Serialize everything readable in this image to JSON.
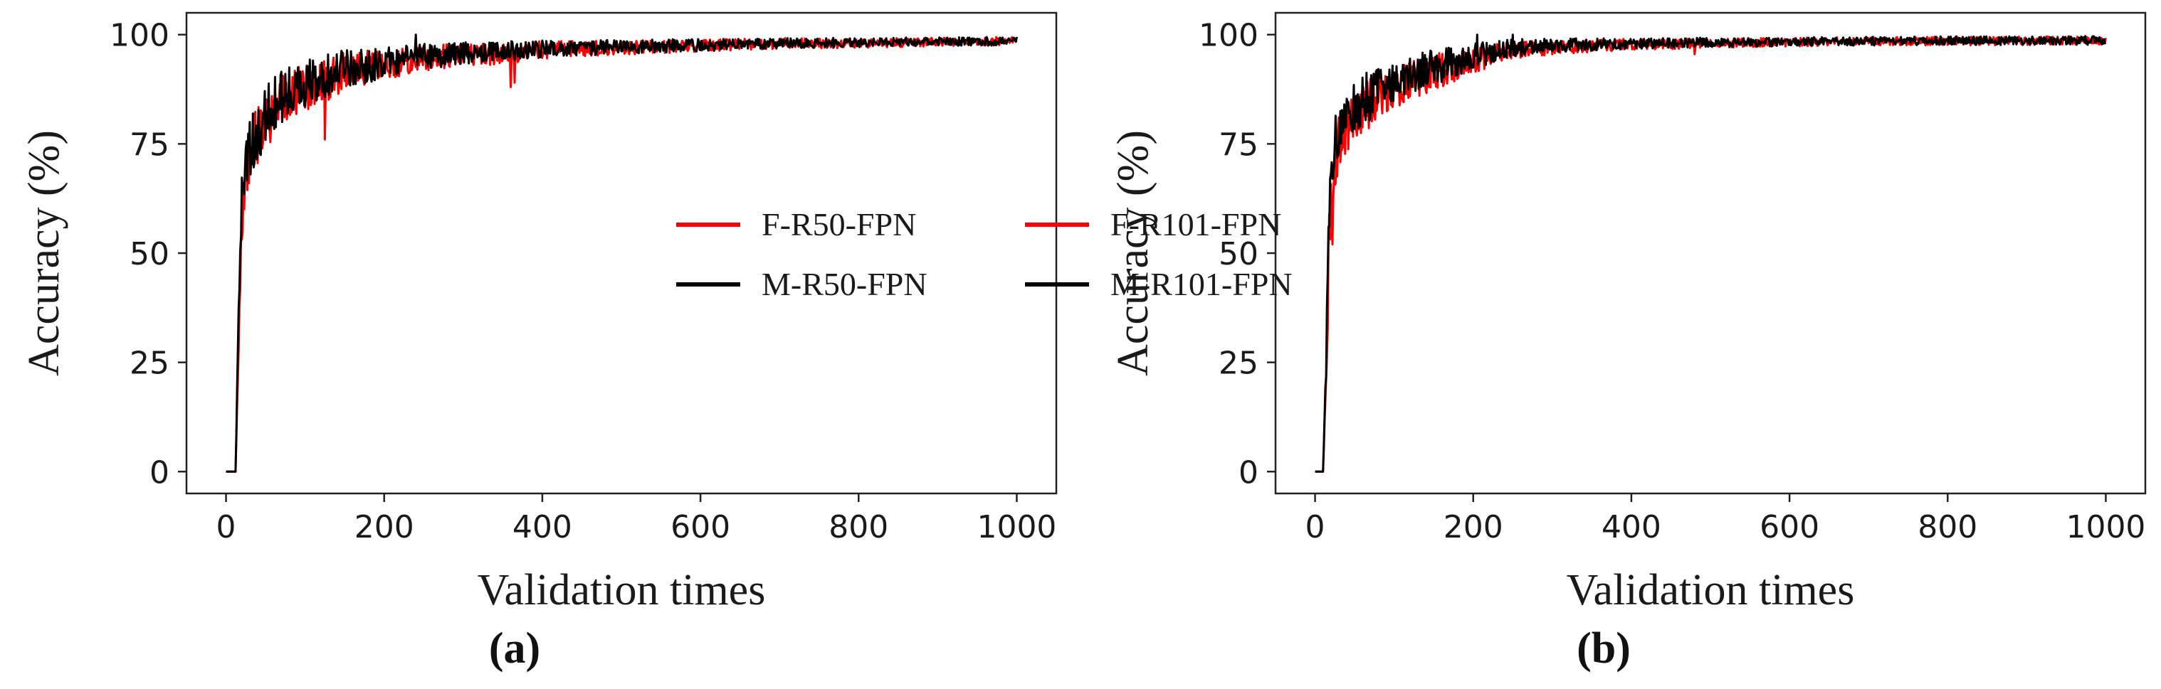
{
  "chart_data": [
    {
      "type": "line",
      "panel_label": "(a)",
      "xlabel": "Validation times",
      "ylabel": "Accuracy (%)",
      "xlim": [
        -50,
        1050
      ],
      "ylim": [
        -5,
        105
      ],
      "xticks": [
        0,
        200,
        400,
        600,
        800,
        1000
      ],
      "yticks": [
        0,
        25,
        50,
        75,
        100
      ],
      "legend_position": "center-right",
      "series": [
        {
          "name": "F-R50-FPN",
          "color": "#ff0000",
          "x": [
            0,
            12,
            16,
            20,
            25,
            30,
            40,
            50,
            60,
            80,
            100,
            130,
            160,
            200,
            250,
            300,
            350,
            400,
            500,
            600,
            700,
            800,
            900,
            1000
          ],
          "y": [
            0,
            0,
            30,
            58,
            68,
            72,
            77,
            80,
            83,
            86,
            88,
            90,
            92,
            93,
            94.5,
            95.5,
            95.5,
            96.5,
            97,
            97.5,
            98,
            98,
            98.3,
            98.5
          ],
          "noise": [
            0,
            0,
            3,
            6,
            6,
            7,
            7,
            7,
            6.5,
            6,
            5.5,
            5,
            4.5,
            3.5,
            3,
            2.5,
            2.5,
            2,
            1.6,
            1.4,
            1.2,
            1.1,
            1,
            1
          ],
          "dips": [
            {
              "x": 125,
              "y": 76
            },
            {
              "x": 360,
              "y": 88
            },
            {
              "x": 365,
              "y": 89
            }
          ]
        },
        {
          "name": "M-R50-FPN",
          "color": "#000000",
          "x": [
            0,
            12,
            16,
            20,
            25,
            30,
            40,
            50,
            60,
            80,
            100,
            130,
            160,
            200,
            250,
            300,
            350,
            400,
            500,
            600,
            700,
            800,
            900,
            1000
          ],
          "y": [
            0,
            0,
            35,
            62,
            70,
            74,
            78,
            81,
            84,
            87,
            89,
            91,
            92.5,
            93.5,
            95,
            95.8,
            96.2,
            96.8,
            97.2,
            97.6,
            98,
            98.2,
            98.4,
            98.5
          ],
          "noise": [
            0,
            0,
            3,
            6,
            6,
            7,
            7,
            7,
            6.5,
            6,
            5.5,
            5,
            4.5,
            3.5,
            3,
            2.5,
            2.2,
            2,
            1.6,
            1.4,
            1.2,
            1.1,
            1,
            1
          ],
          "dips": [
            {
              "x": 240,
              "y": 100
            },
            {
              "x": 30,
              "y": 80
            }
          ]
        }
      ]
    },
    {
      "type": "line",
      "panel_label": "(b)",
      "xlabel": "Validation times",
      "ylabel": "Accuracy (%)",
      "xlim": [
        -50,
        1050
      ],
      "ylim": [
        -5,
        105
      ],
      "xticks": [
        0,
        200,
        400,
        600,
        800,
        1000
      ],
      "yticks": [
        0,
        25,
        50,
        75,
        100
      ],
      "legend_position": "center-right",
      "series": [
        {
          "name": "F-R101-FPN",
          "color": "#ff0000",
          "x": [
            0,
            10,
            14,
            18,
            22,
            28,
            35,
            45,
            60,
            80,
            100,
            130,
            160,
            200,
            250,
            300,
            400,
            500,
            600,
            700,
            800,
            900,
            1000
          ],
          "y": [
            0,
            0,
            20,
            55,
            68,
            74,
            78,
            80,
            83,
            86,
            88,
            90,
            92,
            94,
            96.5,
            97,
            97.8,
            98,
            98.3,
            98.5,
            98.5,
            98.6,
            98.7
          ],
          "noise": [
            0,
            0,
            4,
            7,
            7,
            6.5,
            6,
            6,
            6,
            5.5,
            5,
            4.5,
            4,
            3,
            2,
            1.6,
            1.3,
            1.1,
            1,
            1,
            1,
            1,
            1
          ],
          "dips": [
            {
              "x": 22,
              "y": 52
            },
            {
              "x": 480,
              "y": 95.5
            }
          ]
        },
        {
          "name": "M-R101-FPN",
          "color": "#000000",
          "x": [
            0,
            10,
            14,
            18,
            22,
            28,
            35,
            45,
            60,
            80,
            100,
            130,
            160,
            200,
            250,
            300,
            400,
            500,
            600,
            700,
            800,
            900,
            1000
          ],
          "y": [
            0,
            0,
            25,
            60,
            72,
            77,
            80,
            82,
            85,
            87.5,
            89.5,
            91.5,
            93,
            95,
            97,
            97.5,
            98,
            98.2,
            98.4,
            98.5,
            98.6,
            98.6,
            98.7
          ],
          "noise": [
            0,
            0,
            4,
            7,
            7,
            6.5,
            6,
            6,
            6,
            5.5,
            5,
            4.5,
            4,
            3,
            2,
            1.6,
            1.3,
            1.1,
            1,
            1,
            1,
            1,
            1
          ],
          "dips": [
            {
              "x": 205,
              "y": 100
            },
            {
              "x": 250,
              "y": 100
            }
          ]
        }
      ]
    }
  ]
}
